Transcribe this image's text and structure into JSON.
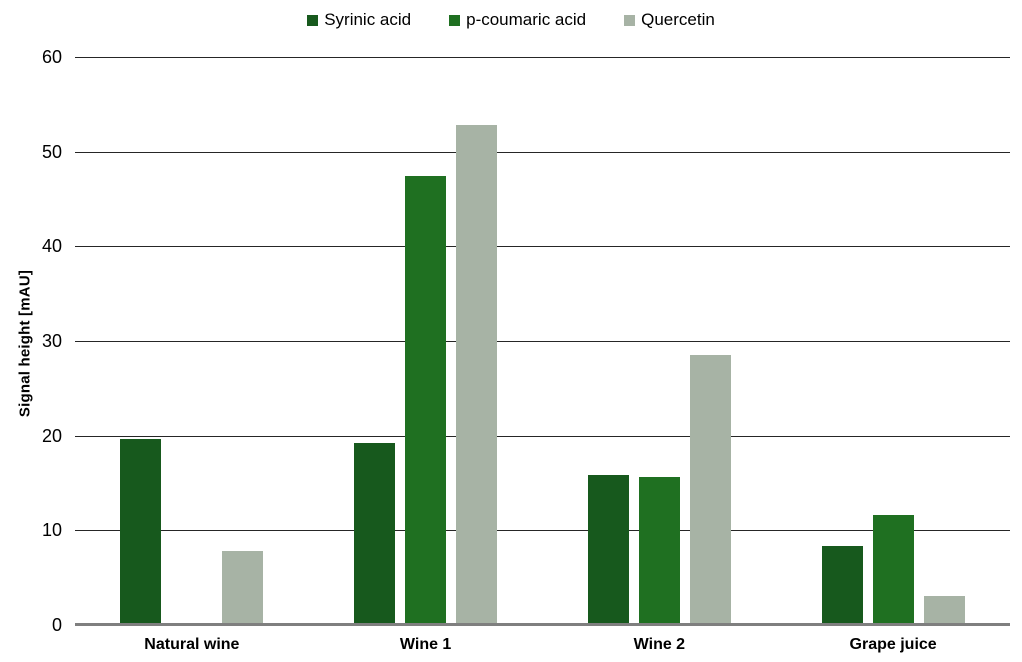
{
  "chart_data": {
    "type": "bar",
    "title": "",
    "categories": [
      "Natural wine",
      "Wine 1",
      "Wine 2",
      "Grape juice"
    ],
    "series": [
      {
        "name": "Syrinic acid",
        "color": "#17591d",
        "values": [
          19.6,
          19.2,
          15.8,
          8.3
        ]
      },
      {
        "name": "p-coumaric acid",
        "color": "#1f7021",
        "values": [
          0,
          47.4,
          15.6,
          11.6
        ]
      },
      {
        "name": "Quercetin",
        "color": "#a7b3a5",
        "values": [
          7.8,
          52.8,
          28.5,
          3.1
        ]
      }
    ],
    "xlabel": "",
    "ylabel": "Signal height [mAU]",
    "ylim": [
      0,
      60
    ],
    "yticks": [
      0,
      10,
      20,
      30,
      40,
      50,
      60
    ],
    "grid": true,
    "legend_position": "top-center",
    "colors": {
      "gridline": "#262626",
      "axis_line": "#7f7f7f",
      "text": "#000000",
      "background": "#ffffff"
    }
  }
}
